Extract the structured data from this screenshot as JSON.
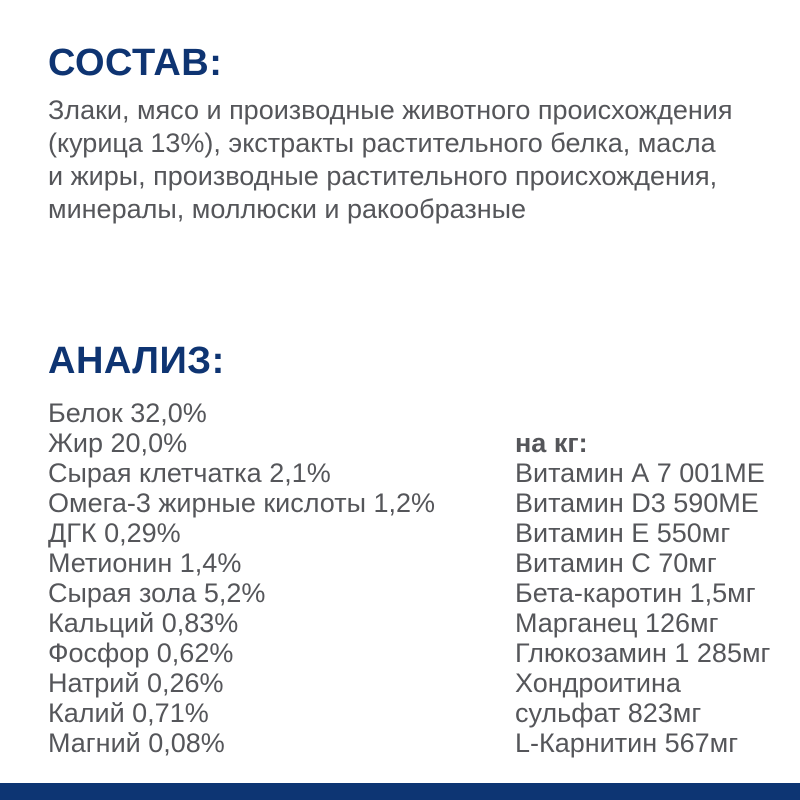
{
  "composition": {
    "title": "СОСТАВ:",
    "lines": [
      "Злаки, мясо и производные животного происхождения",
      "(курица 13%), экстракты растительного белка, масла",
      "и жиры, производные растительного происхождения,",
      "минералы, моллюски и ракообразные"
    ]
  },
  "analysis": {
    "title": "АНАЛИЗ:",
    "nutrients": [
      "Белок 32,0%",
      "Жир 20,0%",
      "Сырая клетчатка 2,1%",
      "Омега-3 жирные кислоты 1,2%",
      "ДГК 0,29%",
      "Метионин 1,4%",
      "Сырая зола 5,2%",
      "Кальций 0,83%",
      "Фосфор 0,62%",
      "Натрий 0,26%",
      "Калий 0,71%",
      "Магний 0,08%"
    ],
    "per_kg_label": "на кг:",
    "per_kg_items": [
      "Витамин А 7 001МЕ",
      "Витамин D3 590МЕ",
      "Витамин Е 550мг",
      "Витамин С 70мг",
      "Бета-каротин 1,5мг",
      "Марганец 126мг",
      "Глюкозамин 1 285мг",
      "Хондроитина",
      "сульфат 823мг",
      "L-Карнитин 567мг"
    ]
  },
  "colors": {
    "heading_blue": "#0e3472",
    "body_gray": "#55565a",
    "footer_bar_blue": "#0d3573"
  }
}
